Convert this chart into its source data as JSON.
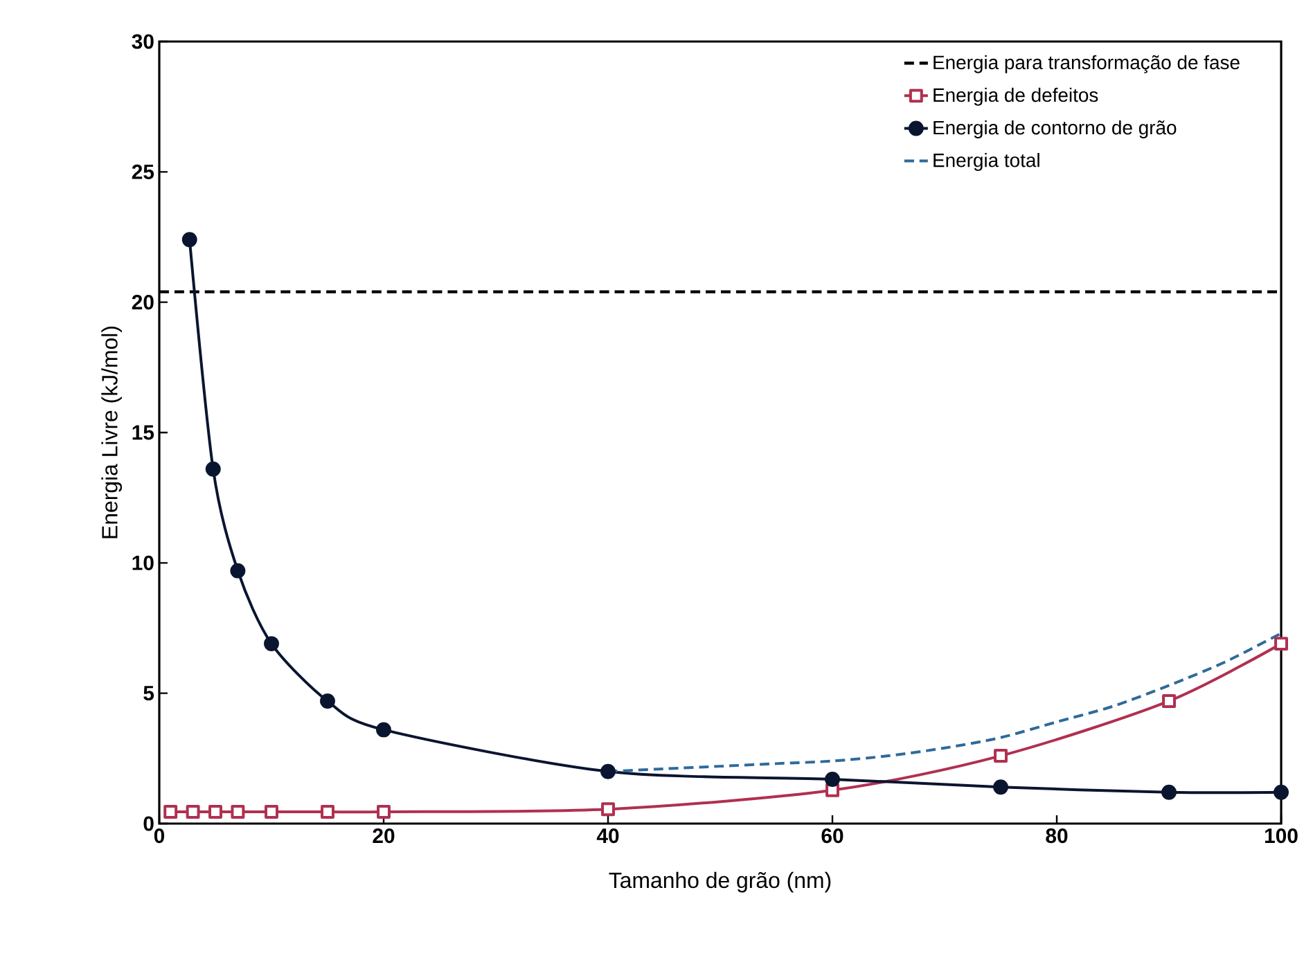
{
  "chart_data": {
    "type": "line",
    "xlabel": "Tamanho de grão (nm)",
    "ylabel": "Energia Livre (kJ/mol)",
    "xlim": [
      0,
      100
    ],
    "ylim": [
      0,
      30
    ],
    "xticks": [
      0,
      20,
      40,
      60,
      80,
      100
    ],
    "yticks": [
      0,
      5,
      10,
      15,
      20,
      25,
      30
    ],
    "grid": false,
    "legend": "top right",
    "ref_lines": [
      {
        "axis": "y",
        "value": 20.4,
        "label": "Energia para transformação de fase",
        "color": "#000000",
        "line_style": "dashed"
      }
    ],
    "series": [
      {
        "name": "Energia de defeitos",
        "color": "#b03050",
        "marker": "square",
        "line_style": "solid",
        "x": [
          1,
          3,
          5,
          7,
          10,
          15,
          20,
          40,
          60,
          75,
          90,
          100
        ],
        "values": [
          0.45,
          0.45,
          0.45,
          0.45,
          0.45,
          0.45,
          0.45,
          0.55,
          1.28,
          2.6,
          4.7,
          6.9
        ]
      },
      {
        "name": "Energia de contorno de grão",
        "color": "#0a1530",
        "marker": "circle",
        "line_style": "solid",
        "x": [
          2.7,
          4.8,
          7,
          10,
          15,
          20,
          40,
          60,
          75,
          90,
          100
        ],
        "values": [
          22.4,
          13.6,
          9.7,
          6.9,
          4.7,
          3.6,
          2.0,
          1.7,
          1.4,
          1.2,
          1.2
        ]
      },
      {
        "name": "Energia total",
        "color": "#2f6a9a",
        "marker": "none",
        "line_style": "dashed",
        "x": [
          40,
          45,
          50,
          55,
          60,
          65,
          70,
          75,
          80,
          85,
          90,
          95,
          100
        ],
        "values": [
          2.0,
          2.1,
          2.2,
          2.3,
          2.4,
          2.6,
          2.9,
          3.3,
          3.9,
          4.5,
          5.3,
          6.2,
          7.3
        ]
      }
    ]
  }
}
